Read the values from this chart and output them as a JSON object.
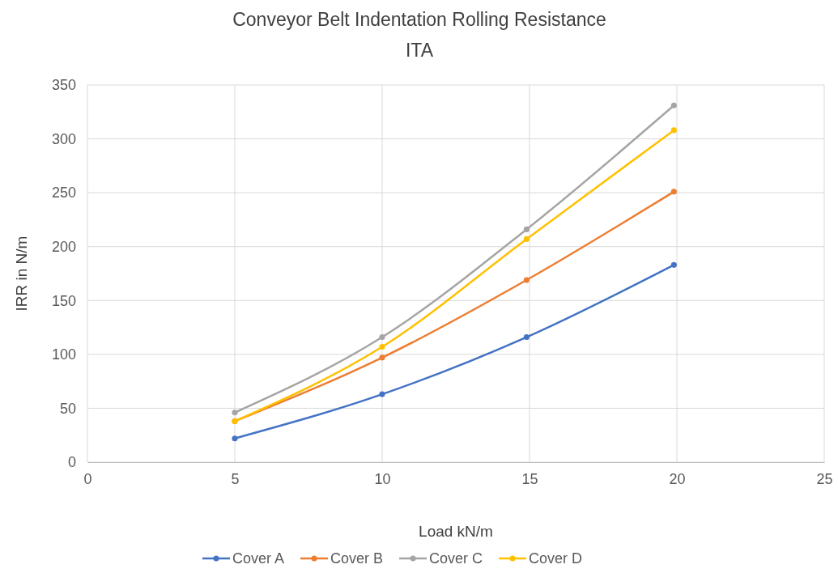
{
  "chart_data": {
    "type": "line",
    "title": "Conveyor Belt Indentation Rolling Resistance",
    "subtitle": "ITA",
    "xlabel": "Load kN/m",
    "ylabel": "IRR in N/m",
    "x": [
      5,
      10,
      14.9,
      19.9
    ],
    "series": [
      {
        "name": "Cover A",
        "color": "#4472c4",
        "values": [
          22,
          63,
          116,
          183
        ]
      },
      {
        "name": "Cover B",
        "color": "#ed7d31",
        "values": [
          38,
          97,
          169,
          251
        ]
      },
      {
        "name": "Cover C",
        "color": "#a5a5a5",
        "values": [
          46,
          116,
          216,
          331
        ]
      },
      {
        "name": "Cover D",
        "color": "#ffc000",
        "values": [
          38,
          107,
          207,
          308
        ]
      }
    ],
    "xlim": [
      0,
      25
    ],
    "xticks": [
      0,
      5,
      10,
      15,
      20,
      25
    ],
    "ylim": [
      0,
      350
    ],
    "yticks": [
      0,
      50,
      100,
      150,
      200,
      250,
      300,
      350
    ],
    "grid": true,
    "legend": "bottom",
    "marker": "circle",
    "line_style": "solid"
  }
}
